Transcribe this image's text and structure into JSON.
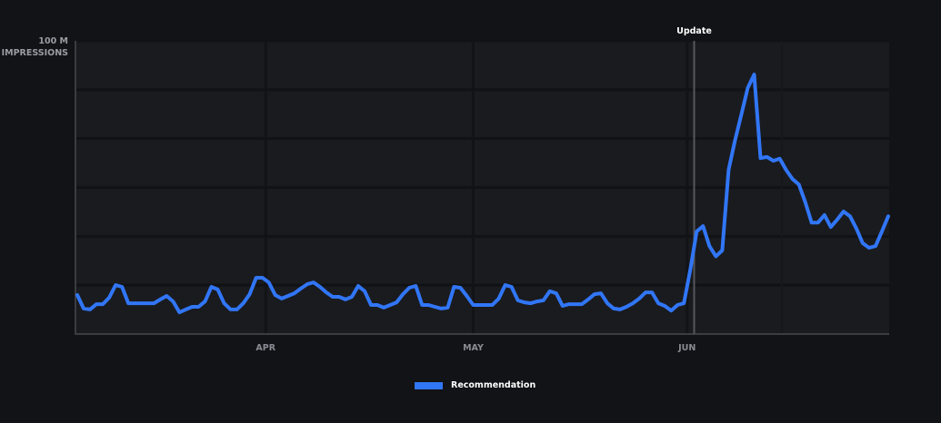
{
  "chart_data": {
    "type": "line",
    "title": "",
    "ylabel": "IMPRESSIONS",
    "y_max_label": "100 M",
    "ylim": [
      0,
      100
    ],
    "y_unit": "M",
    "y_grid": [
      0,
      16.67,
      33.33,
      50,
      66.67,
      83.33,
      100
    ],
    "x_ticks": [
      {
        "label": "APR",
        "index": 29.5
      },
      {
        "label": "MAY",
        "index": 62
      },
      {
        "label": "JUN",
        "index": 95.5
      }
    ],
    "x_grid_extra": [
      110.3
    ],
    "annotation": {
      "label": "Update",
      "index": 96.6
    },
    "series": [
      {
        "name": "Recommendation",
        "color": "#3176f6",
        "values": [
          13.3,
          8.7,
          8.4,
          10.2,
          10.2,
          12.4,
          16.7,
          16.1,
          10.5,
          10.5,
          10.5,
          10.5,
          10.5,
          11.8,
          13.0,
          11.1,
          7.4,
          8.4,
          9.3,
          9.3,
          11.1,
          16.1,
          15.2,
          10.5,
          8.4,
          8.4,
          10.5,
          13.6,
          19.2,
          19.2,
          17.6,
          13.3,
          12.1,
          13.0,
          13.9,
          15.5,
          17.0,
          17.6,
          16.1,
          14.2,
          12.7,
          12.7,
          11.8,
          12.7,
          16.4,
          14.6,
          9.9,
          9.9,
          9.0,
          9.9,
          10.8,
          13.6,
          15.8,
          16.4,
          9.9,
          9.9,
          9.3,
          8.7,
          9.0,
          16.1,
          15.8,
          13.0,
          9.9,
          9.9,
          9.9,
          9.9,
          12.1,
          16.7,
          16.1,
          11.5,
          10.8,
          10.5,
          11.1,
          11.5,
          14.6,
          13.9,
          9.6,
          10.2,
          10.2,
          10.2,
          11.8,
          13.6,
          13.9,
          10.5,
          8.7,
          8.4,
          9.3,
          10.5,
          12.1,
          14.2,
          14.2,
          10.5,
          9.6,
          8.0,
          9.9,
          10.5,
          22,
          35,
          36.8,
          30,
          26.5,
          28.5,
          56,
          66,
          75,
          84,
          88.5,
          60,
          60.4,
          59.1,
          59.8,
          56,
          52.9,
          51,
          45,
          38,
          38,
          40.6,
          36.5,
          39,
          41.8,
          40.2,
          36,
          31,
          29.4,
          30,
          35,
          40.2
        ]
      }
    ],
    "legend": {
      "placement": "bottom-center"
    }
  }
}
